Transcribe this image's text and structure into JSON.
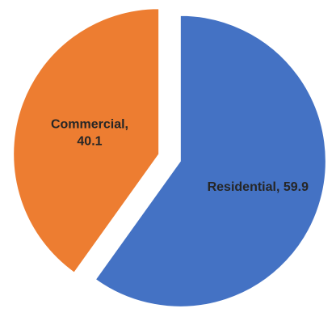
{
  "chart_data": {
    "type": "pie",
    "slices": [
      {
        "name": "Commercial",
        "value": 40.1,
        "color": "#ED7D31",
        "exploded": true,
        "label_lines": [
          "Commercial,",
          "40.1"
        ]
      },
      {
        "name": "Residential",
        "value": 59.9,
        "color": "#4472C4",
        "exploded": true,
        "label_lines": [
          "Residential, 59.9"
        ]
      }
    ],
    "title": "",
    "legend": "none"
  }
}
